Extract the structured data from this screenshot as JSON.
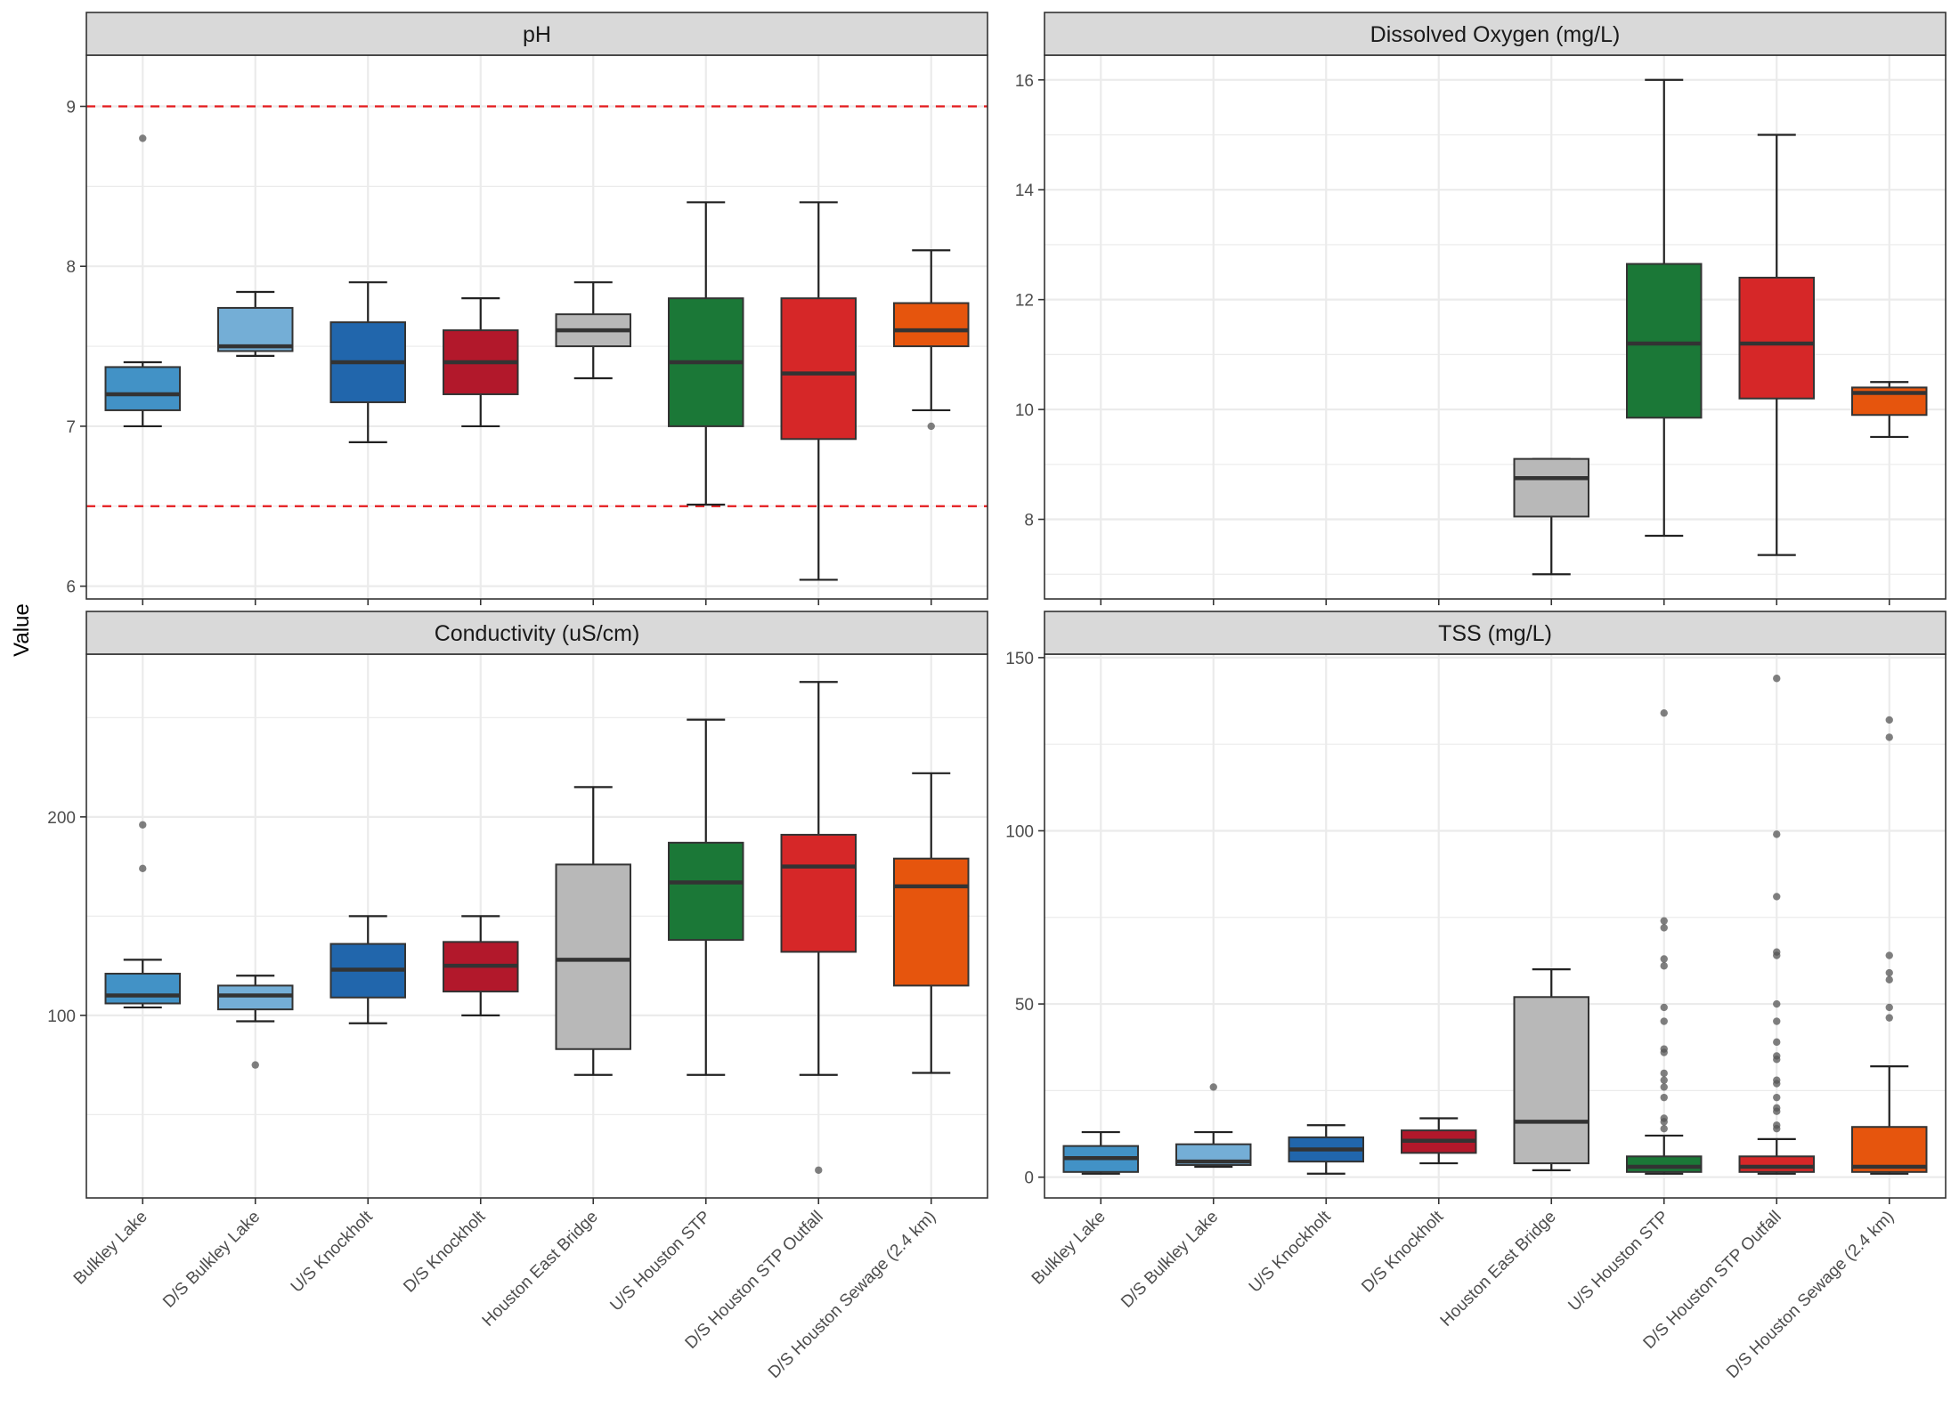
{
  "chart_data": {
    "type": "boxplot",
    "y_axis_title": "Value",
    "sites": [
      "Bulkley Lake",
      "D/S Bulkley Lake",
      "U/S Knockholt",
      "D/S Knockholt",
      "Houston East Bridge",
      "U/S Houston STP",
      "D/S Houston STP Outfall",
      "D/S Houston Sewage (2.4 km)"
    ],
    "site_colors": [
      "#4292c6",
      "#74aed6",
      "#2166ac",
      "#b2182b",
      "#b8b8b8",
      "#1b7837",
      "#d62728",
      "#e6550d"
    ],
    "reference_line_color": "#e41a1c",
    "grid_color": "#ebebeb",
    "strip_fill": "#d9d9d9",
    "panels": [
      {
        "title": "pH",
        "ylim": [
          5.92,
          9.32
        ],
        "yticks": [
          6,
          7,
          8,
          9
        ],
        "reference_lines": [
          6.5,
          9.0
        ],
        "boxes": [
          {
            "site": "Bulkley Lake",
            "whisker_low": 7.0,
            "q1": 7.1,
            "median": 7.2,
            "q3": 7.37,
            "whisker_high": 7.4,
            "outliers": [
              8.8
            ]
          },
          {
            "site": "D/S Bulkley Lake",
            "whisker_low": 7.44,
            "q1": 7.47,
            "median": 7.5,
            "q3": 7.74,
            "whisker_high": 7.84,
            "outliers": []
          },
          {
            "site": "U/S Knockholt",
            "whisker_low": 6.9,
            "q1": 7.15,
            "median": 7.4,
            "q3": 7.65,
            "whisker_high": 7.9,
            "outliers": []
          },
          {
            "site": "D/S Knockholt",
            "whisker_low": 7.0,
            "q1": 7.2,
            "median": 7.4,
            "q3": 7.6,
            "whisker_high": 7.8,
            "outliers": []
          },
          {
            "site": "Houston East Bridge",
            "whisker_low": 7.3,
            "q1": 7.5,
            "median": 7.6,
            "q3": 7.7,
            "whisker_high": 7.9,
            "outliers": []
          },
          {
            "site": "U/S Houston STP",
            "whisker_low": 6.51,
            "q1": 7.0,
            "median": 7.4,
            "q3": 7.8,
            "whisker_high": 8.4,
            "outliers": []
          },
          {
            "site": "D/S Houston STP Outfall",
            "whisker_low": 6.04,
            "q1": 6.92,
            "median": 7.33,
            "q3": 7.8,
            "whisker_high": 8.4,
            "outliers": []
          },
          {
            "site": "D/S Houston Sewage (2.4 km)",
            "whisker_low": 7.1,
            "q1": 7.5,
            "median": 7.6,
            "q3": 7.77,
            "whisker_high": 8.1,
            "outliers": [
              7.0
            ]
          }
        ]
      },
      {
        "title": "Dissolved Oxygen (mg/L)",
        "ylim": [
          6.55,
          16.45
        ],
        "yticks": [
          8,
          10,
          12,
          14,
          16
        ],
        "reference_lines": [],
        "boxes": [
          {
            "site": "Houston East Bridge",
            "whisker_low": 7.0,
            "q1": 8.05,
            "median": 8.75,
            "q3": 9.1,
            "whisker_high": 9.1,
            "outliers": []
          },
          {
            "site": "U/S Houston STP",
            "whisker_low": 7.7,
            "q1": 9.85,
            "median": 11.2,
            "q3": 12.65,
            "whisker_high": 16.0,
            "outliers": []
          },
          {
            "site": "D/S Houston STP Outfall",
            "whisker_low": 7.35,
            "q1": 10.2,
            "median": 11.2,
            "q3": 12.4,
            "whisker_high": 15.0,
            "outliers": []
          },
          {
            "site": "D/S Houston Sewage (2.4 km)",
            "whisker_low": 9.5,
            "q1": 9.9,
            "median": 10.3,
            "q3": 10.4,
            "whisker_high": 10.5,
            "outliers": []
          }
        ]
      },
      {
        "title": "Conductivity (uS/cm)",
        "ylim": [
          8,
          282
        ],
        "yticks": [
          100,
          200
        ],
        "reference_lines": [],
        "boxes": [
          {
            "site": "Bulkley Lake",
            "whisker_low": 104,
            "q1": 106,
            "median": 110,
            "q3": 121,
            "whisker_high": 128,
            "outliers": [
              196,
              174
            ]
          },
          {
            "site": "D/S Bulkley Lake",
            "whisker_low": 97,
            "q1": 103,
            "median": 110,
            "q3": 115,
            "whisker_high": 120,
            "outliers": [
              75
            ]
          },
          {
            "site": "U/S Knockholt",
            "whisker_low": 96,
            "q1": 109,
            "median": 123,
            "q3": 136,
            "whisker_high": 150,
            "outliers": []
          },
          {
            "site": "D/S Knockholt",
            "whisker_low": 100,
            "q1": 112,
            "median": 125,
            "q3": 137,
            "whisker_high": 150,
            "outliers": []
          },
          {
            "site": "Houston East Bridge",
            "whisker_low": 70,
            "q1": 83,
            "median": 128,
            "q3": 176,
            "whisker_high": 215,
            "outliers": []
          },
          {
            "site": "U/S Houston STP",
            "whisker_low": 70,
            "q1": 138,
            "median": 167,
            "q3": 187,
            "whisker_high": 249,
            "outliers": []
          },
          {
            "site": "D/S Houston STP Outfall",
            "whisker_low": 70,
            "q1": 132,
            "median": 175,
            "q3": 191,
            "whisker_high": 268,
            "outliers": [
              22
            ]
          },
          {
            "site": "D/S Houston Sewage (2.4 km)",
            "whisker_low": 71,
            "q1": 115,
            "median": 165,
            "q3": 179,
            "whisker_high": 222,
            "outliers": []
          }
        ]
      },
      {
        "title": "TSS (mg/L)",
        "ylim": [
          -6,
          151
        ],
        "yticks": [
          0,
          50,
          100,
          150
        ],
        "reference_lines": [],
        "boxes": [
          {
            "site": "Bulkley Lake",
            "whisker_low": 1,
            "q1": 1.5,
            "median": 5.5,
            "q3": 9,
            "whisker_high": 13,
            "outliers": []
          },
          {
            "site": "D/S Bulkley Lake",
            "whisker_low": 3,
            "q1": 3.5,
            "median": 4.5,
            "q3": 9.5,
            "whisker_high": 13,
            "outliers": [
              26
            ]
          },
          {
            "site": "U/S Knockholt",
            "whisker_low": 1,
            "q1": 4.5,
            "median": 8,
            "q3": 11.5,
            "whisker_high": 15,
            "outliers": []
          },
          {
            "site": "D/S Knockholt",
            "whisker_low": 4,
            "q1": 7,
            "median": 10.5,
            "q3": 13.5,
            "whisker_high": 17,
            "outliers": []
          },
          {
            "site": "Houston East Bridge",
            "whisker_low": 2,
            "q1": 4,
            "median": 16,
            "q3": 52,
            "whisker_high": 60,
            "outliers": []
          },
          {
            "site": "U/S Houston STP",
            "whisker_low": 1,
            "q1": 1.5,
            "median": 3,
            "q3": 6,
            "whisker_high": 12,
            "outliers": [
              134,
              74,
              72,
              63,
              61,
              49,
              45,
              37,
              36,
              30,
              28,
              26,
              23,
              17,
              16,
              14
            ]
          },
          {
            "site": "D/S Houston STP Outfall",
            "whisker_low": 1,
            "q1": 1.5,
            "median": 3,
            "q3": 6,
            "whisker_high": 11,
            "outliers": [
              144,
              99,
              81,
              65,
              64,
              50,
              45,
              39,
              35,
              34,
              28,
              27,
              23,
              20,
              19,
              15,
              14
            ]
          },
          {
            "site": "D/S Houston Sewage (2.4 km)",
            "whisker_low": 1,
            "q1": 1.5,
            "median": 3,
            "q3": 14.5,
            "whisker_high": 32,
            "outliers": [
              132,
              127,
              64,
              59,
              57,
              49,
              46
            ]
          }
        ]
      }
    ]
  }
}
